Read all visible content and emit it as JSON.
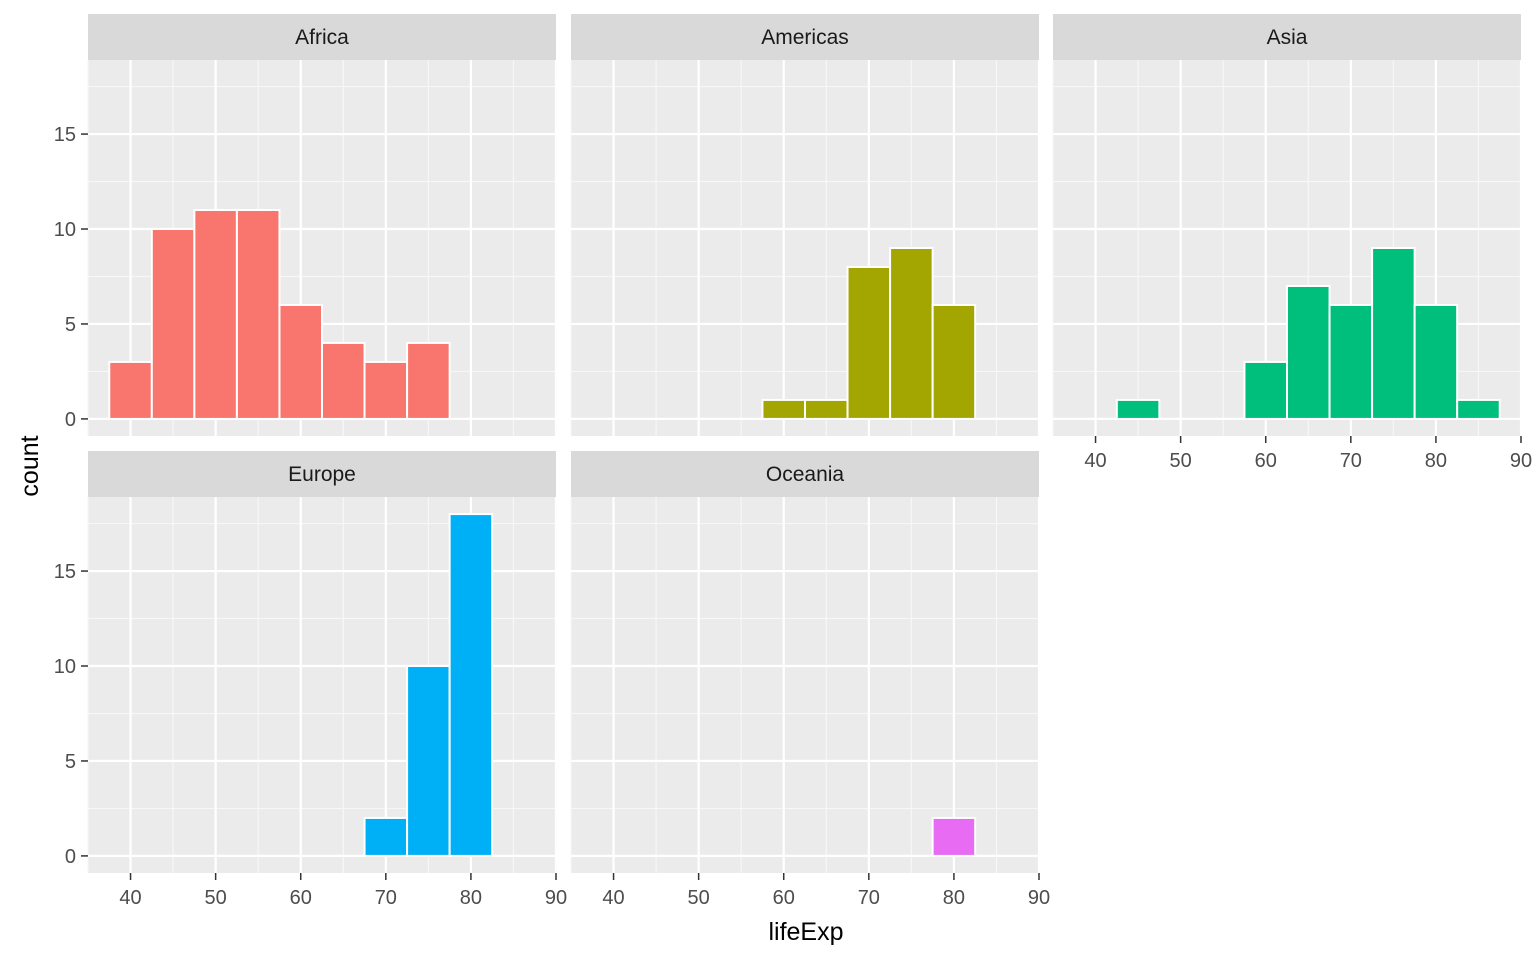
{
  "chart_data": {
    "type": "bar",
    "subtype": "faceted-histogram",
    "xlabel": "lifeExp",
    "ylabel": "count",
    "xlim": [
      35,
      90
    ],
    "ylim": [
      -0.9,
      18.9
    ],
    "x_ticks": [
      40,
      50,
      60,
      70,
      80,
      90
    ],
    "y_ticks": [
      0,
      5,
      10,
      15
    ],
    "bin_width": 5,
    "grid": true,
    "legend": "none",
    "panels": [
      {
        "name": "Africa",
        "color": "#F8766D",
        "bins": [
          {
            "x0": 37.5,
            "x1": 42.5,
            "count": 3
          },
          {
            "x0": 42.5,
            "x1": 47.5,
            "count": 10
          },
          {
            "x0": 47.5,
            "x1": 52.5,
            "count": 11
          },
          {
            "x0": 52.5,
            "x1": 57.5,
            "count": 11
          },
          {
            "x0": 57.5,
            "x1": 62.5,
            "count": 6
          },
          {
            "x0": 62.5,
            "x1": 67.5,
            "count": 4
          },
          {
            "x0": 67.5,
            "x1": 72.5,
            "count": 3
          },
          {
            "x0": 72.5,
            "x1": 77.5,
            "count": 4
          }
        ]
      },
      {
        "name": "Americas",
        "color": "#A3A500",
        "bins": [
          {
            "x0": 57.5,
            "x1": 62.5,
            "count": 1
          },
          {
            "x0": 62.5,
            "x1": 67.5,
            "count": 1
          },
          {
            "x0": 67.5,
            "x1": 72.5,
            "count": 8
          },
          {
            "x0": 72.5,
            "x1": 77.5,
            "count": 9
          },
          {
            "x0": 77.5,
            "x1": 82.5,
            "count": 6
          }
        ]
      },
      {
        "name": "Asia",
        "color": "#00BF7D",
        "bins": [
          {
            "x0": 42.5,
            "x1": 47.5,
            "count": 1
          },
          {
            "x0": 57.5,
            "x1": 62.5,
            "count": 3
          },
          {
            "x0": 62.5,
            "x1": 67.5,
            "count": 7
          },
          {
            "x0": 67.5,
            "x1": 72.5,
            "count": 6
          },
          {
            "x0": 72.5,
            "x1": 77.5,
            "count": 9
          },
          {
            "x0": 77.5,
            "x1": 82.5,
            "count": 6
          },
          {
            "x0": 82.5,
            "x1": 87.5,
            "count": 1
          }
        ]
      },
      {
        "name": "Europe",
        "color": "#00B0F6",
        "bins": [
          {
            "x0": 67.5,
            "x1": 72.5,
            "count": 2
          },
          {
            "x0": 72.5,
            "x1": 77.5,
            "count": 10
          },
          {
            "x0": 77.5,
            "x1": 82.5,
            "count": 18
          }
        ]
      },
      {
        "name": "Oceania",
        "color": "#E76BF3",
        "bins": [
          {
            "x0": 77.5,
            "x1": 82.5,
            "count": 2
          }
        ]
      }
    ]
  }
}
